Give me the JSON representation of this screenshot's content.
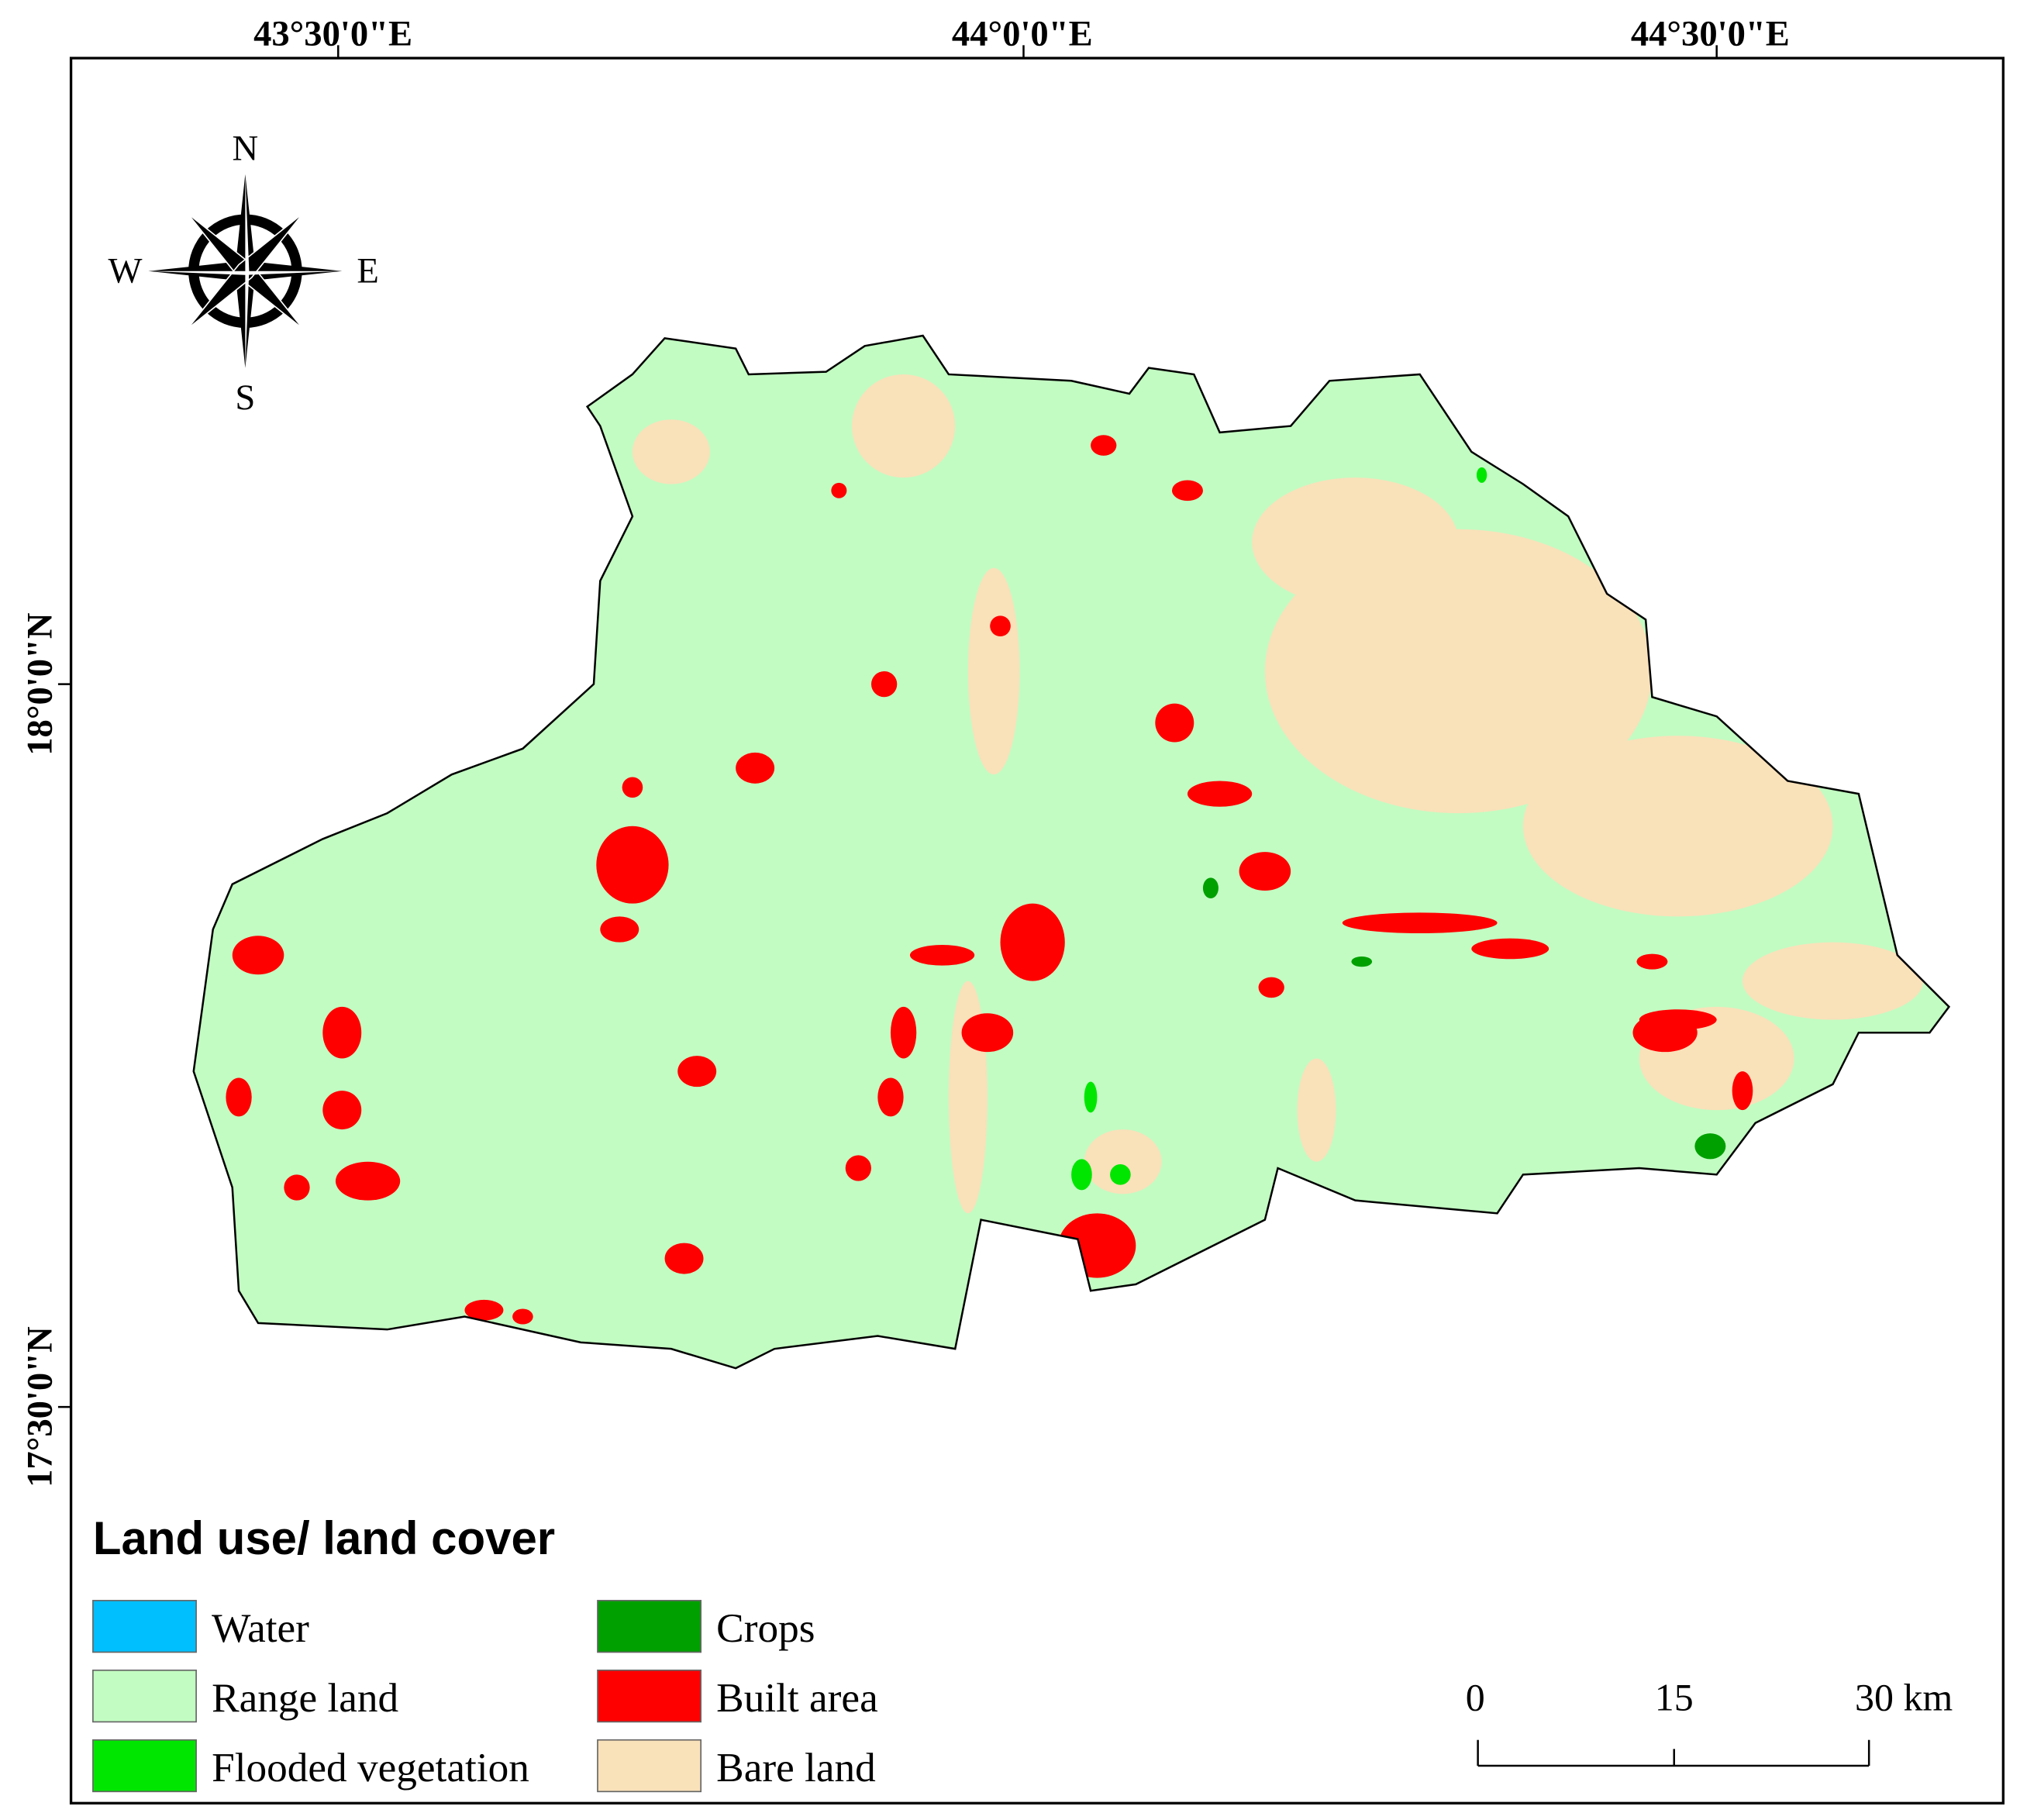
{
  "map": {
    "longitude_labels": [
      "43°30'0\"E",
      "44°0'0\"E",
      "44°30'0\"E"
    ],
    "latitude_labels": [
      "18°0'0\"N",
      "17°30'0\"N"
    ],
    "compass": {
      "north": "N",
      "east": "E",
      "south": "S",
      "west": "W"
    },
    "legend": {
      "title": "Land use/ land cover",
      "items": [
        {
          "label": "Water",
          "color": "#00bfff"
        },
        {
          "label": "Range land",
          "color": "#c2fcc2"
        },
        {
          "label": "Flooded vegetation",
          "color": "#00e600"
        },
        {
          "label": "Crops",
          "color": "#00a000"
        },
        {
          "label": "Built area",
          "color": "#ff0000"
        },
        {
          "label": "Bare land",
          "color": "#f9e1ba"
        }
      ]
    },
    "scale_bar": {
      "labels": [
        "0",
        "15",
        "30 km"
      ]
    }
  }
}
